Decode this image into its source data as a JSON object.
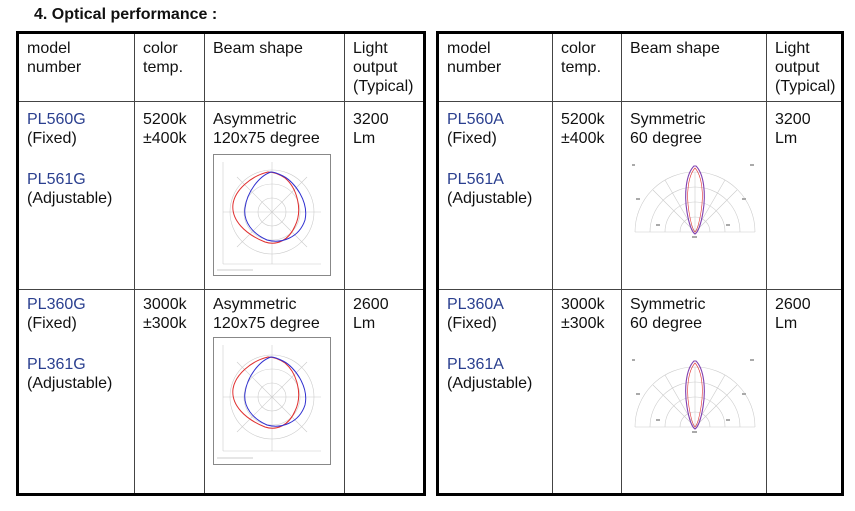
{
  "section_title": "4. Optical performance :",
  "headers": {
    "model_l1": "model",
    "model_l2": "number",
    "temp_l1": "color",
    "temp_l2": "temp.",
    "beam": "Beam shape",
    "light_l1": "Light",
    "light_l2": "output",
    "light_l3": "(Typical)"
  },
  "left_table": [
    {
      "model1": "PL560G",
      "model1_note": "(Fixed)",
      "model2": "PL561G",
      "model2_note": "(Adjustable)",
      "temp": "5200k",
      "tolerance": "±400k",
      "beam": "Asymmetric",
      "angle": "120x75 degree",
      "output": "3200",
      "unit": "Lm"
    },
    {
      "model1": "PL360G",
      "model1_note": "(Fixed)",
      "model2": "PL361G",
      "model2_note": "(Adjustable)",
      "temp": "3000k",
      "tolerance": "±300k",
      "beam": "Asymmetric",
      "angle": "120x75 degree",
      "output": "2600",
      "unit": "Lm"
    }
  ],
  "right_table": [
    {
      "model1": "PL560A",
      "model1_note": "(Fixed)",
      "model2": "PL561A",
      "model2_note": "(Adjustable)",
      "temp": "5200k",
      "tolerance": "±400k",
      "beam": "Symmetric",
      "angle": "60 degree",
      "output": "3200",
      "unit": "Lm"
    },
    {
      "model1": "PL360A",
      "model1_note": "(Fixed)",
      "model2": "PL361A",
      "model2_note": "(Adjustable)",
      "temp": "3000k",
      "tolerance": "±300k",
      "beam": "Symmetric",
      "angle": "60 degree",
      "output": "2600",
      "unit": "Lm"
    }
  ],
  "colors": {
    "model_text": "#2a3f8f",
    "curve_red": "#e03030",
    "curve_blue": "#3030d0",
    "curve_purple": "#8040b0"
  }
}
